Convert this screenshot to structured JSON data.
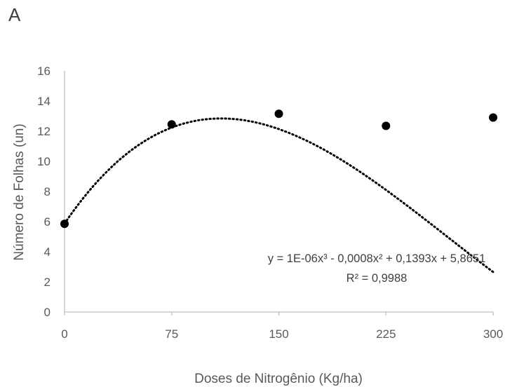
{
  "panel_label": "A",
  "chart_data": {
    "type": "scatter",
    "title": "",
    "xlabel": "Doses de Nitrogênio (Kg/ha)",
    "ylabel": "Número de Folhas (un)",
    "x": [
      0,
      75,
      150,
      225,
      300
    ],
    "y": [
      5.85,
      12.45,
      13.15,
      12.35,
      12.9
    ],
    "xticks": [
      0,
      75,
      150,
      225,
      300
    ],
    "yticks": [
      0,
      2,
      4,
      6,
      8,
      10,
      12,
      14,
      16
    ],
    "xlim": [
      0,
      300
    ],
    "ylim": [
      0,
      16
    ],
    "grid": false,
    "legend": "none",
    "trendline": {
      "type": "polynomial",
      "order": 3,
      "coefficients": [
        1e-06,
        -0.0008,
        0.1393,
        5.8651
      ],
      "equation": "y = 1E-06x³ - 0,0008x² + 0,1393x + 5,8651",
      "r_squared": "R² = 0,9988",
      "style": "dotted"
    },
    "marker_color": "#000000",
    "axis_color": "#bfbfbf"
  }
}
